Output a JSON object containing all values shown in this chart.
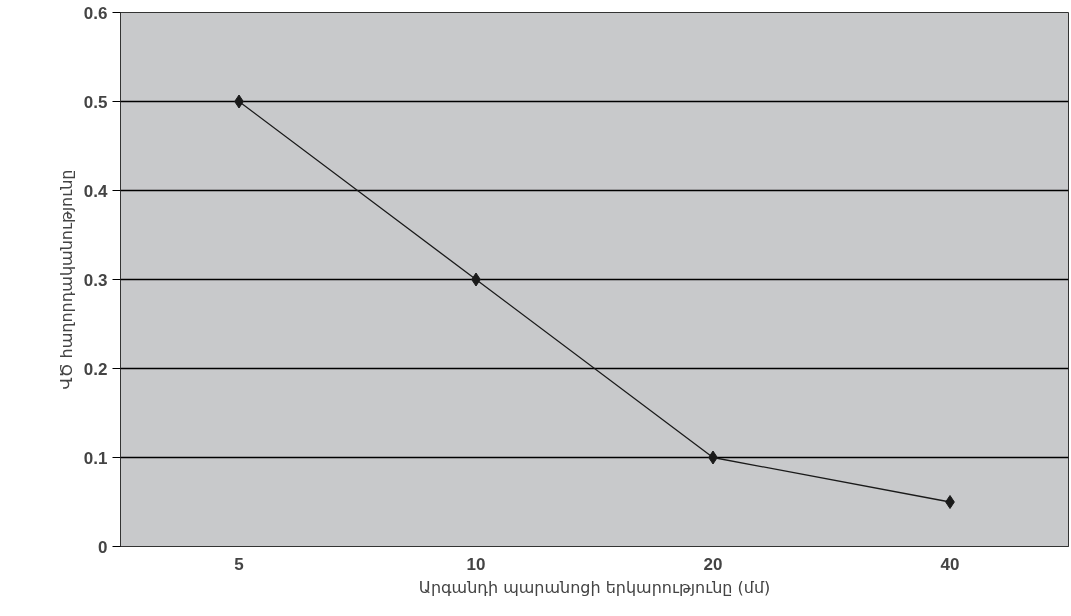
{
  "chart_data": {
    "type": "line",
    "xlabel": "Արգանդի պարանոցի երկարությունը (մմ)",
    "ylabel": "ՎԾ հաղորդականությունը",
    "categories": [
      "5",
      "10",
      "20",
      "40"
    ],
    "series": [
      {
        "color": "#1a1a1a",
        "values": [
          0.5,
          0.3,
          0.1,
          0.05
        ]
      }
    ],
    "ylim": [
      0,
      0.6
    ],
    "yticks": [
      0,
      0.1,
      0.2,
      0.3,
      0.4,
      0.5,
      0.6
    ],
    "grid": "y",
    "marker": "diamond",
    "line_style": "solid"
  }
}
